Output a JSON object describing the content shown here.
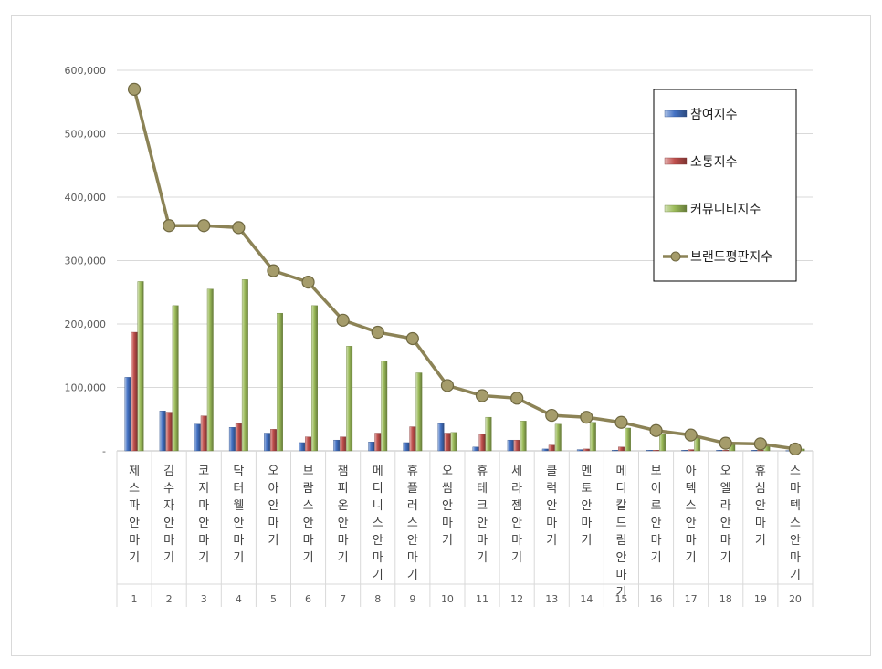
{
  "chart_data": {
    "type": "bar",
    "categories": [
      "제스파안마기",
      "김수자안마기",
      "코지마안마기",
      "닥터웰안마기",
      "오아안마기",
      "브람스안마기",
      "챔피온안마기",
      "메디니스안마기",
      "휴플러스안마기",
      "오씸안마기",
      "휴테크안마기",
      "세라젬안마기",
      "클럭안마기",
      "멘토안마기",
      "메디칼드림안마기",
      "보이로안마기",
      "아텍스안마기",
      "오엘라안마기",
      "휴심안마기",
      "스마텍스안마기"
    ],
    "ranks": [
      "1",
      "2",
      "3",
      "4",
      "5",
      "6",
      "7",
      "8",
      "9",
      "10",
      "11",
      "12",
      "13",
      "14",
      "15",
      "16",
      "17",
      "18",
      "19",
      "20"
    ],
    "series": [
      {
        "name": "참여지수",
        "kind": "bar",
        "color": "#4472C4",
        "values": [
          116000,
          63000,
          42000,
          37000,
          28000,
          13000,
          17000,
          14000,
          13000,
          43000,
          6000,
          17000,
          3000,
          2000,
          1000,
          1000,
          1000,
          1000,
          1000,
          500
        ]
      },
      {
        "name": "소통지수",
        "kind": "bar",
        "color": "#C0504D",
        "values": [
          187000,
          61000,
          55000,
          43000,
          34000,
          22000,
          22000,
          28000,
          38000,
          28000,
          26000,
          17000,
          9000,
          3000,
          6000,
          1000,
          2000,
          1000,
          1000,
          500
        ]
      },
      {
        "name": "커뮤니티지수",
        "kind": "bar",
        "color": "#9BBB59",
        "values": [
          267000,
          229000,
          255000,
          270000,
          217000,
          229000,
          165000,
          142000,
          123000,
          29000,
          53000,
          47000,
          42000,
          45000,
          36000,
          27000,
          22000,
          10000,
          9000,
          3000
        ]
      },
      {
        "name": "브랜드평판지수",
        "kind": "line",
        "color": "#8C8356",
        "values": [
          570000,
          355000,
          355000,
          352000,
          284000,
          266000,
          206000,
          187000,
          177000,
          103000,
          87000,
          83000,
          56000,
          53000,
          45000,
          32000,
          25000,
          12000,
          11000,
          3000
        ]
      }
    ],
    "ylim": [
      0,
      600000
    ],
    "yticks": [
      "-",
      "100,000",
      "200,000",
      "300,000",
      "400,000",
      "500,000",
      "600,000"
    ],
    "legend_position": "top-right",
    "grid": true
  }
}
